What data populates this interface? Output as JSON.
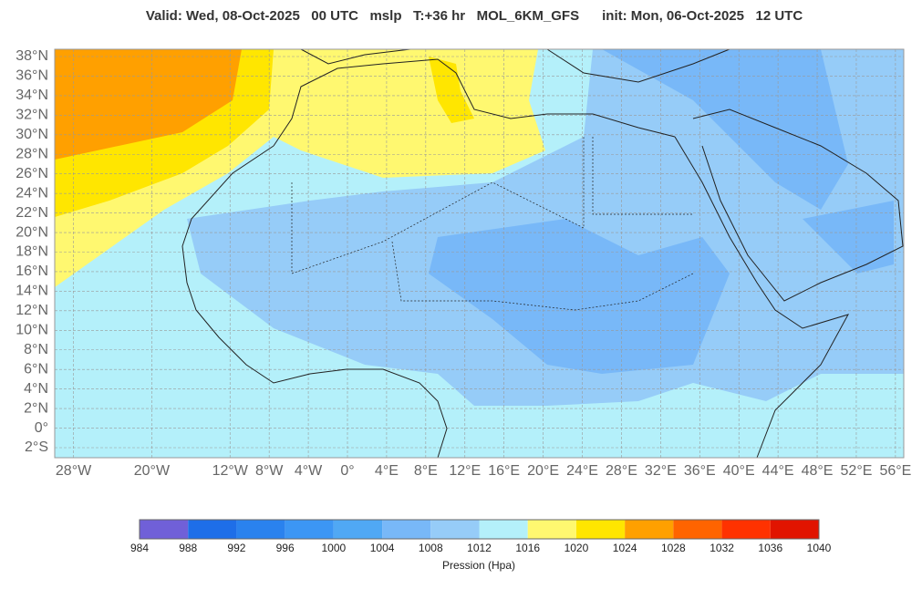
{
  "title": "Valid: Wed, 08-Oct-2025   00 UTC   mslp   T:+36 hr   MOL_6KM_GFS      init: Mon, 06-Oct-2025   12 UTC",
  "map": {
    "lat_ticks": [
      {
        "value": 38,
        "label": "38°N"
      },
      {
        "value": 36,
        "label": "36°N"
      },
      {
        "value": 34,
        "label": "34°N"
      },
      {
        "value": 32,
        "label": "32°N"
      },
      {
        "value": 30,
        "label": "30°N"
      },
      {
        "value": 28,
        "label": "28°N"
      },
      {
        "value": 26,
        "label": "26°N"
      },
      {
        "value": 24,
        "label": "24°N"
      },
      {
        "value": 22,
        "label": "22°N"
      },
      {
        "value": 20,
        "label": "20°N"
      },
      {
        "value": 18,
        "label": "18°N"
      },
      {
        "value": 16,
        "label": "16°N"
      },
      {
        "value": 14,
        "label": "14°N"
      },
      {
        "value": 12,
        "label": "12°N"
      },
      {
        "value": 10,
        "label": "10°N"
      },
      {
        "value": 8,
        "label": "8°N"
      },
      {
        "value": 6,
        "label": "6°N"
      },
      {
        "value": 4,
        "label": "4°N"
      },
      {
        "value": 2,
        "label": "2°N"
      },
      {
        "value": 0,
        "label": "0°"
      },
      {
        "value": -2,
        "label": "2°S"
      }
    ],
    "lon_ticks": [
      {
        "value": -28,
        "label": "28°W"
      },
      {
        "value": -20,
        "label": "20°W"
      },
      {
        "value": -12,
        "label": "12°W"
      },
      {
        "value": -8,
        "label": "8°W"
      },
      {
        "value": -4,
        "label": "4°W"
      },
      {
        "value": 0,
        "label": "0°"
      },
      {
        "value": 4,
        "label": "4°E"
      },
      {
        "value": 8,
        "label": "8°E"
      },
      {
        "value": 12,
        "label": "12°E"
      },
      {
        "value": 16,
        "label": "16°E"
      },
      {
        "value": 20,
        "label": "20°E"
      },
      {
        "value": 24,
        "label": "24°E"
      },
      {
        "value": 28,
        "label": "28°E"
      },
      {
        "value": 32,
        "label": "32°E"
      },
      {
        "value": 36,
        "label": "36°E"
      },
      {
        "value": 40,
        "label": "40°E"
      },
      {
        "value": 44,
        "label": "44°E"
      },
      {
        "value": 48,
        "label": "48°E"
      },
      {
        "value": 52,
        "label": "52°E"
      },
      {
        "value": 56,
        "label": "56°E"
      }
    ]
  },
  "colorbar": {
    "label": "Pression (Hpa)",
    "ticks": [
      984,
      988,
      992,
      996,
      1000,
      1004,
      1008,
      1012,
      1016,
      1020,
      1024,
      1028,
      1032,
      1036,
      1040
    ],
    "colors": [
      "#7060d8",
      "#1e6ee8",
      "#2a82ee",
      "#3c96f4",
      "#50a8f4",
      "#78b8f8",
      "#96ccf8",
      "#b4f0fa",
      "#fff870",
      "#ffe600",
      "#ffa000",
      "#ff6400",
      "#ff3200",
      "#e11400"
    ]
  }
}
